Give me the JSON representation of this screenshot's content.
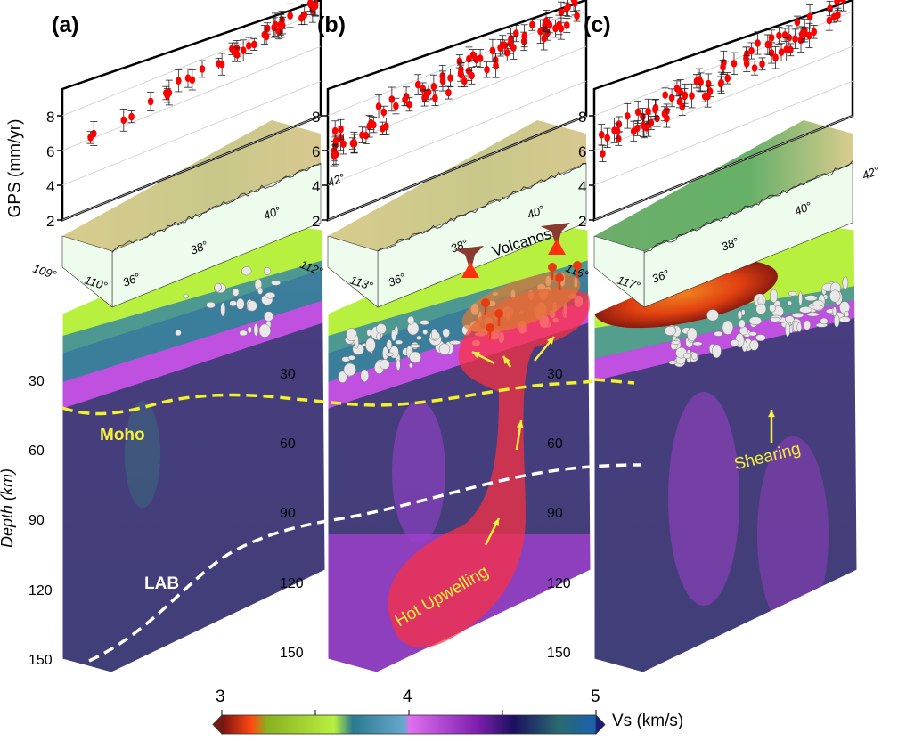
{
  "panels": [
    {
      "label": "(a)",
      "gps_ticks": [
        "2",
        "4",
        "6",
        "8"
      ],
      "geo_labels": [
        "109°",
        "110°",
        "36°",
        "38°",
        "40°",
        "112°"
      ],
      "depth_ticks": [
        "30",
        "60",
        "90",
        "120",
        "150"
      ]
    },
    {
      "label": "(b)",
      "gps_ticks": [
        "2",
        "4",
        "6",
        "8"
      ],
      "geo_labels": [
        "113°",
        "36°",
        "38°",
        "40°",
        "42°",
        "116°"
      ],
      "depth_ticks": [
        "30",
        "60",
        "90",
        "120",
        "150"
      ]
    },
    {
      "label": "(c)",
      "gps_ticks": [
        "2",
        "4",
        "6",
        "8"
      ],
      "geo_labels": [
        "117°",
        "36°",
        "38°",
        "40°",
        "42°"
      ],
      "depth_ticks": [
        "30",
        "60",
        "90",
        "120",
        "150"
      ]
    }
  ],
  "gps_axis_label": "GPS (mm/yr)",
  "depth_axis_label": "Depth (km)",
  "annotations": {
    "moho": "Moho",
    "lab": "LAB",
    "volcanos": "Volcanos",
    "hot_upwelling": "Hot Upwelling",
    "shearing": "Shearing"
  },
  "colorbar": {
    "ticks": [
      "3",
      "4",
      "5"
    ],
    "label": "Vs (km/s)",
    "range": [
      3,
      5
    ],
    "colors": [
      "#7a1010",
      "#ff4a10",
      "#8ab020",
      "#b8f040",
      "#2a7a90",
      "#6aa8d0",
      "#e070f0",
      "#8020b0",
      "#1a1060",
      "#2a6a70",
      "#1a60b0"
    ]
  },
  "colors": {
    "gps_point": "#ff0000",
    "moho_line": "#f2f22a",
    "lab_line": "#ffffff",
    "upwelling": "#ff3040",
    "annotation_text": "#f5f03a"
  }
}
